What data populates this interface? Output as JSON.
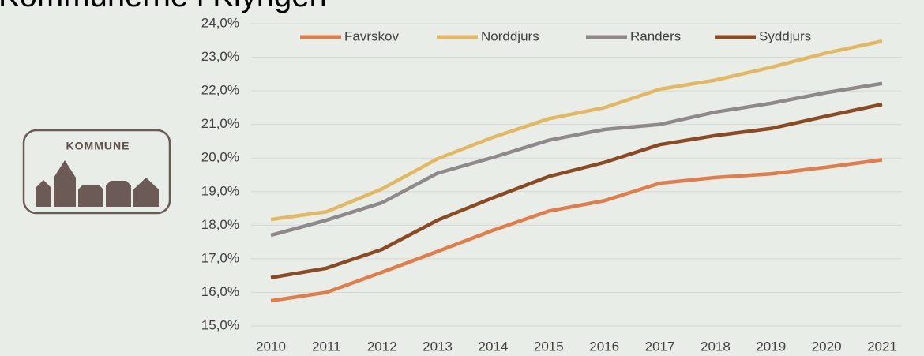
{
  "page": {
    "title": "Kommunerne i Klyngen",
    "logo_text": "KOMMUNE"
  },
  "chart_data": {
    "type": "line",
    "categories": [
      "2010",
      "2011",
      "2012",
      "2013",
      "2014",
      "2015",
      "2016",
      "2017",
      "2018",
      "2019",
      "2020",
      "2021"
    ],
    "series": [
      {
        "name": "Favrskov",
        "color": "#e07d4a",
        "values": [
          15.75,
          16.0,
          16.6,
          17.22,
          17.85,
          18.42,
          18.73,
          19.25,
          19.42,
          19.53,
          19.73,
          19.95
        ]
      },
      {
        "name": "Norddjurs",
        "color": "#e3b862",
        "values": [
          18.17,
          18.4,
          19.08,
          19.98,
          20.62,
          21.17,
          21.5,
          22.05,
          22.32,
          22.7,
          23.13,
          23.48
        ]
      },
      {
        "name": "Randers",
        "color": "#8f8a8a",
        "values": [
          17.7,
          18.15,
          18.67,
          19.55,
          20.02,
          20.53,
          20.85,
          21.0,
          21.37,
          21.63,
          21.95,
          22.22
        ]
      },
      {
        "name": "Syddjurs",
        "color": "#8b4a22",
        "values": [
          16.44,
          16.72,
          17.28,
          18.15,
          18.82,
          19.45,
          19.87,
          20.4,
          20.67,
          20.88,
          21.25,
          21.6
        ]
      }
    ],
    "ylim": [
      15,
      24
    ],
    "yticks": [
      {
        "value": 15,
        "label": "15,0%"
      },
      {
        "value": 16,
        "label": "16,0%"
      },
      {
        "value": 17,
        "label": "17,0%"
      },
      {
        "value": 18,
        "label": "18,0%"
      },
      {
        "value": 19,
        "label": "19,0%"
      },
      {
        "value": 20,
        "label": "20,0%"
      },
      {
        "value": 21,
        "label": "21,0%"
      },
      {
        "value": 22,
        "label": "22,0%"
      },
      {
        "value": 23,
        "label": "23,0%"
      },
      {
        "value": 24,
        "label": "24,0%"
      }
    ],
    "grid": true,
    "legend": "top"
  }
}
